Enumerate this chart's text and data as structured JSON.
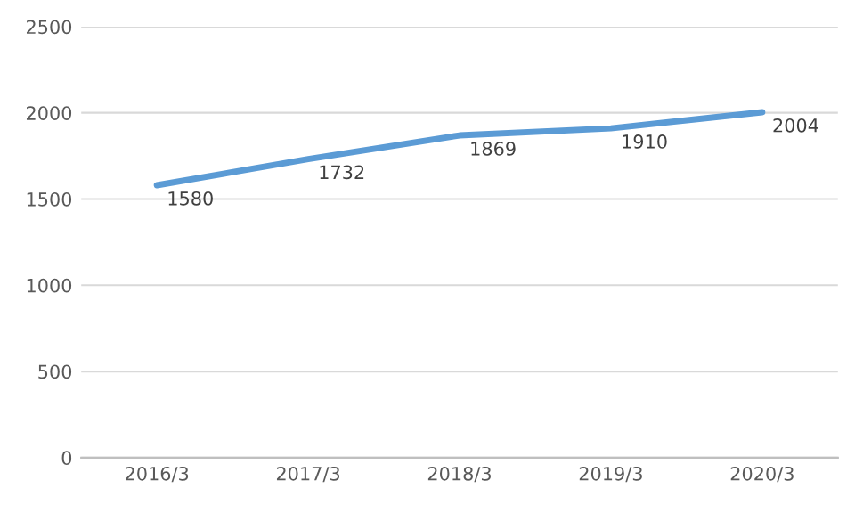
{
  "chart_data": {
    "type": "line",
    "categories": [
      "2016/3",
      "2017/3",
      "2018/3",
      "2019/3",
      "2020/3"
    ],
    "series": [
      {
        "color": "#5b9bd5",
        "values": [
          1580,
          1732,
          1869,
          1910,
          2004
        ]
      }
    ],
    "ylim": [
      0,
      2500
    ],
    "yticks": [
      0,
      500,
      1000,
      1500,
      2000,
      2500
    ],
    "grid": "y",
    "data_labels": true,
    "legend": false,
    "marker": "none",
    "line_style": "solid"
  }
}
